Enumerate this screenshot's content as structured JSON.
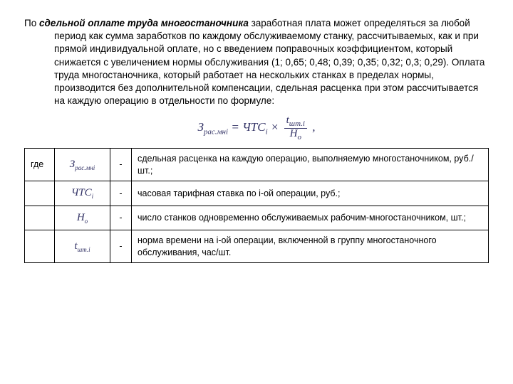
{
  "paragraph": {
    "prefix": "По ",
    "emph": "сдельной оплате труда многостаночника",
    "rest": " заработная плата может определяться за любой период как сумма заработков по каждому обслуживаемому станку, рассчитываемых, как и при прямой индивидуальной оплате, но с введением поправочных коэффициентом, который снижается с увеличением нормы обслуживания (1; 0,65; 0,48; 0,39; 0,35; 0,32; 0,3; 0,29). Оплата труда многостаночника, который работает на нескольких станках в пределах нормы, производится без дополнительной компенсации, сдельная расценка при этом рассчитывается на каждую операцию в отдельности по формуле:"
  },
  "formula": {
    "left_base": "З",
    "left_sub": "рас.мні",
    "eq": " = ",
    "mid_base": "ЧТС",
    "mid_sub": "і",
    "times": " × ",
    "num_base": "t",
    "num_sub": "шт.i",
    "den_base": "Н",
    "den_sub": "о",
    "tail": " ,",
    "color": "#333366",
    "fontsize": 17
  },
  "table": {
    "label": "где",
    "dash": "-",
    "rows": [
      {
        "sym_base": "З",
        "sym_sub": "рас.мні",
        "desc": "сдельная расценка на каждую операцию, выполняемую многостаночником, руб./шт.;"
      },
      {
        "sym_base": "ЧТС",
        "sym_sub": "і",
        "desc": "часовая тарифная ставка по i-ой операции, руб.;"
      },
      {
        "sym_base": "Н",
        "sym_sub": "о",
        "desc": "число станков одновременно обслуживаемых рабочим-многостаночником, шт.;"
      },
      {
        "sym_base": "t",
        "sym_sub": "шт.i",
        "desc": "норма времени на i-ой операции, включенной в группу многостаночного обслуживания, час/шт."
      }
    ]
  },
  "styling": {
    "page_bg": "#ffffff",
    "text_color": "#000000",
    "formula_color": "#333366",
    "border_color": "#000000",
    "body_fontsize": 13.5,
    "table_fontsize": 12.5
  }
}
